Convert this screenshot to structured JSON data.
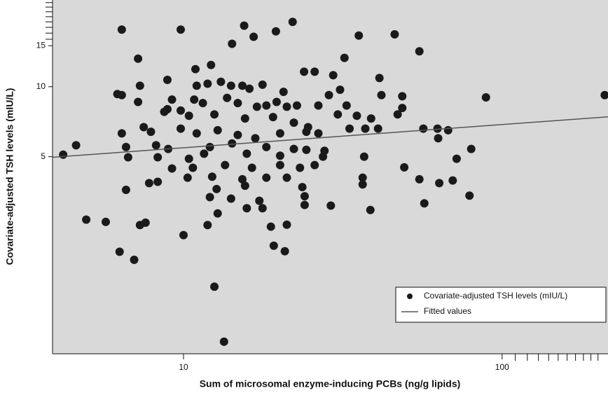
{
  "chart_data": {
    "type": "scatter",
    "x_label": "Sum of microsomal enzyme-inducing PCBs (ng/g lipids)",
    "y_label": "Covariate-adjusted TSH levels (mIU/L)",
    "xscale": "log",
    "yscale": "log",
    "xlim": [
      3.88,
      215
    ],
    "ylim": [
      0.71,
      23.6
    ],
    "xticks": [
      10,
      100
    ],
    "xminor_ticks": [
      110,
      120,
      130,
      140,
      150,
      160,
      170,
      180,
      190,
      200
    ],
    "yticks": [
      5,
      10,
      15
    ],
    "yminor_ticks": [
      16,
      17,
      18,
      19,
      20,
      21,
      22,
      23
    ],
    "background": "#d9d9d9",
    "legend": "lower right",
    "series": [
      {
        "name": "Covariate-adjusted TSH levels (mIU/L)",
        "type": "scatter",
        "color": "#1a1a1a",
        "x": [
          6.4,
          9.8,
          15.5,
          16.6,
          19.5,
          22,
          14.2,
          35.5,
          46,
          55,
          7.2,
          32,
          8.9,
          10.9,
          12.2,
          7.3,
          11,
          13.1,
          11.9,
          14.1,
          15.3,
          16.1,
          17.7,
          20.6,
          23.9,
          25.8,
          29.5,
          31,
          41.2,
          41.8,
          48.6,
          89,
          210,
          6.2,
          6.4,
          7.2,
          9.2,
          8.9,
          9.8,
          10.8,
          11.5,
          13.7,
          14.8,
          17,
          18.2,
          19.6,
          21.1,
          22.7,
          26.5,
          28.6,
          32.5,
          35,
          38.8,
          47,
          48.6,
          8.7,
          10.4,
          12.5,
          15.6,
          19.1,
          22.2,
          24.6,
          30.5,
          6.4,
          7.5,
          7.9,
          9.8,
          11,
          12.8,
          14.8,
          16.8,
          20.1,
          24.3,
          26.5,
          33.2,
          37.2,
          40.8,
          56.6,
          62.7,
          67.7,
          63,
          6.6,
          8.2,
          8.95,
          12.1,
          14.2,
          18.2,
          22.2,
          24.3,
          27.7,
          80,
          4.6,
          4.19,
          6.7,
          8.3,
          10.4,
          11.6,
          15.8,
          20.1,
          27.4,
          36.9,
          72,
          9.2,
          10.7,
          13.5,
          16.4,
          20.1,
          23.2,
          25.8,
          49.3,
          10.3,
          12.3,
          15.3,
          18.2,
          21.1,
          36.5,
          55,
          70,
          7.8,
          8.3,
          63.5,
          36.5,
          6.6,
          12.7,
          15.6,
          23.6,
          79,
          12.1,
          14.1,
          17.3,
          24,
          15.8,
          17.7,
          24,
          29,
          38.6,
          57,
          12.8,
          4.95,
          5.7,
          7.6,
          7.3,
          11.9,
          18.8,
          21.1,
          10,
          19.2,
          20.8,
          6.3,
          7.0,
          12.5,
          13.4
        ],
        "values": [
          17.6,
          17.6,
          18.3,
          16.4,
          17.3,
          19,
          15.3,
          16.6,
          16.8,
          14.2,
          13.2,
          13.3,
          10.7,
          11.9,
          12.4,
          10.1,
          10.1,
          10.5,
          10.3,
          10.1,
          10.1,
          9.8,
          10.2,
          9.5,
          11.6,
          11.6,
          11.2,
          9.7,
          10.9,
          9.2,
          9.1,
          9.0,
          9.2,
          9.3,
          9.2,
          8.6,
          8.8,
          8.0,
          7.9,
          8.8,
          8.5,
          8.95,
          8.5,
          8.2,
          8.3,
          8.6,
          8.2,
          8.3,
          8.3,
          9.2,
          8.3,
          7.5,
          7.3,
          7.6,
          8.1,
          7.8,
          7.5,
          7.6,
          7.3,
          7.4,
          7.0,
          6.7,
          7.6,
          6.3,
          6.7,
          6.4,
          6.6,
          6.3,
          6.5,
          6.2,
          6.0,
          6.3,
          6.4,
          6.3,
          6.6,
          6.6,
          6.6,
          6.6,
          6.6,
          6.5,
          6.0,
          5.5,
          5.6,
          5.4,
          5.5,
          5.7,
          5.5,
          5.4,
          5.35,
          5.3,
          5.4,
          5.6,
          5.1,
          4.97,
          4.97,
          4.9,
          5.15,
          5.15,
          5.05,
          5.0,
          5.0,
          4.9,
          4.45,
          4.48,
          4.6,
          4.48,
          4.6,
          4.48,
          4.6,
          4.5,
          4.06,
          4.1,
          4.0,
          4.06,
          4.06,
          4.06,
          4.0,
          3.95,
          3.85,
          3.9,
          3.85,
          3.8,
          3.6,
          3.63,
          3.75,
          3.7,
          3.4,
          3.35,
          3.3,
          3.23,
          3.38,
          3.0,
          3.0,
          3.1,
          3.08,
          2.95,
          3.15,
          2.85,
          2.68,
          2.62,
          2.6,
          2.54,
          2.54,
          2.5,
          2.55,
          2.3,
          2.07,
          1.96,
          1.95,
          1.8,
          1.38,
          0.8
        ]
      },
      {
        "name": "Fitted values",
        "type": "line",
        "color": "#555555",
        "x": [
          3.88,
          215
        ],
        "values": [
          4.97,
          7.42
        ]
      }
    ]
  }
}
